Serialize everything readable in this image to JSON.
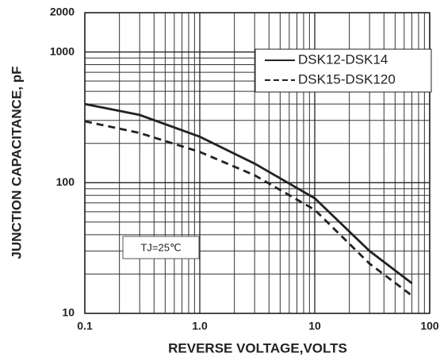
{
  "chart_data": {
    "type": "line",
    "x_label": "REVERSE VOLTAGE,VOLTS",
    "y_label": "JUNCTION CAPACITANCE, pF",
    "annotation": "TJ=25℃",
    "x": [
      0.1,
      0.3,
      1,
      3,
      10,
      30,
      70
    ],
    "series": [
      {
        "name": "DSK12-DSK14",
        "color": "#222222",
        "dash": false,
        "values": [
          400,
          330,
          225,
          140,
          76,
          30,
          17
        ]
      },
      {
        "name": "DSK15-DSK120",
        "color": "#222222",
        "dash": true,
        "values": [
          295,
          240,
          172,
          114,
          62,
          24,
          13.7
        ]
      }
    ],
    "xlim": [
      0.1,
      100
    ],
    "ylim": [
      10,
      2000
    ],
    "xticks": [
      0.1,
      {
        "value": 1,
        "label": "1.0"
      },
      10,
      100
    ],
    "yticks": [
      10,
      100,
      1000,
      2000
    ],
    "xscale": "log",
    "yscale": "log",
    "grid": true,
    "xgrid": [
      0.2,
      0.3,
      0.4,
      0.5,
      0.6,
      0.7,
      0.8,
      0.9,
      2,
      3,
      4,
      5,
      6,
      7,
      8,
      9,
      20,
      30,
      40,
      50,
      60,
      70,
      80,
      90
    ],
    "ygrid": [
      20,
      30,
      40,
      50,
      60,
      70,
      80,
      90,
      200,
      300,
      400,
      500,
      600,
      700,
      800,
      900
    ],
    "legend": "upper right"
  }
}
